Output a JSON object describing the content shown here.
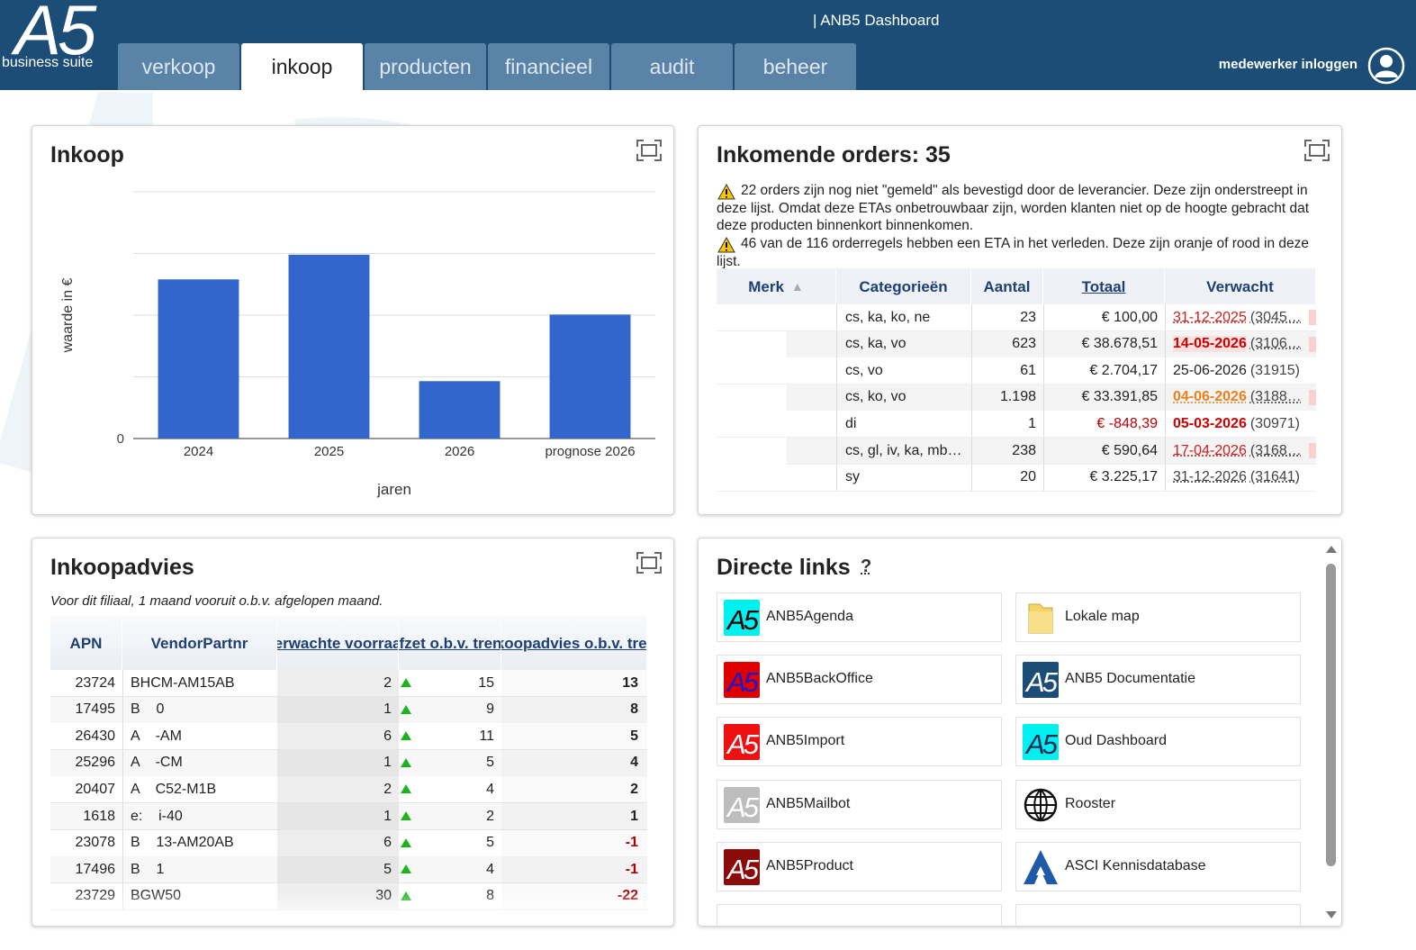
{
  "header": {
    "logo_text": "A5",
    "logo_subtitle": "business suite",
    "title": "| ANB5 Dashboard",
    "tabs": [
      "verkoop",
      "inkoop",
      "producten",
      "financieel",
      "audit",
      "beheer"
    ],
    "active_tab": 1,
    "login": "medewerker inloggen"
  },
  "chart_data": {
    "type": "bar",
    "title": "Inkoop",
    "categories": [
      "2024",
      "2025",
      "2026",
      "prognose 2026"
    ],
    "values": [
      2.58,
      2.98,
      0.93,
      2.01
    ],
    "color": "#3366cc",
    "ylim": [
      0,
      4
    ],
    "yticks": [
      0
    ],
    "grid": true,
    "x_label": "jaren",
    "y_label": "waarde in €"
  },
  "orders": {
    "title": "Inkomende orders: 35",
    "warnings": [
      "22 orders zijn nog niet \"gemeld\" als bevestigd door de leverancier. Deze zijn onderstreept in deze lijst. Omdat deze ETAs onbetrouwbaar zijn, worden klanten niet op de hoogte gebracht dat deze producten binnenkort binnenkomen.",
      "46 van de 116 orderregels hebben een ETA in het verleden. Deze zijn oranje of rood in deze lijst."
    ],
    "columns": [
      "Merk",
      "Categorieën",
      "Aantal",
      "Totaal",
      "Verwacht"
    ],
    "sort_column": 0,
    "rows": [
      {
        "categories": "cs, ka, ko, ne",
        "amount": "23",
        "total": "€ 100,00",
        "date": "31-12-2025",
        "ref": "(3045…",
        "date_style": "red-underline"
      },
      {
        "categories": "cs, ka, vo",
        "amount": "623",
        "total": "€ 38.678,51",
        "date": "14-05-2026",
        "ref": "(3106…",
        "date_style": "red-bold"
      },
      {
        "categories": "cs, vo",
        "amount": "61",
        "total": "€ 2.704,17",
        "date": "25-06-2026",
        "ref": "(31915)",
        "date_style": "plain"
      },
      {
        "categories": "cs, ko, vo",
        "amount": "1.198",
        "total": "€ 33.391,85",
        "date": "04-06-2026",
        "ref": "(3188…",
        "date_style": "orange-underline"
      },
      {
        "categories": "di",
        "amount": "1",
        "total": "€ -848,39",
        "date": "05-03-2026",
        "ref": "(30971)",
        "date_style": "red-strong"
      },
      {
        "categories": "cs, gl, iv, ka, mb…",
        "amount": "238",
        "total": "€ 590,64",
        "date": "17-04-2026",
        "ref": "(3168…",
        "date_style": "red-underline"
      },
      {
        "categories": "sy",
        "amount": "20",
        "total": "€ 3.225,17",
        "date": "31-12-2026",
        "ref": "(31641)",
        "date_style": "gray-underline"
      }
    ]
  },
  "advice": {
    "title": "Inkoopadvies",
    "subtitle": "Voor dit filiaal, 1 maand vooruit o.b.v. afgelopen maand.",
    "columns": [
      "APN",
      "VendorPartnr",
      "Verwachte voorraad",
      "Afzet o.b.v. trend",
      "Inkoopadvies o.b.v. trend"
    ],
    "rows": [
      [
        23724,
        "BHCM-AM15AB",
        2,
        15,
        13
      ],
      [
        17495,
        "B    0",
        1,
        9,
        8
      ],
      [
        26430,
        "A    -AM",
        6,
        11,
        5
      ],
      [
        25296,
        "A    -CM",
        1,
        5,
        4
      ],
      [
        20407,
        "A    C52-M1B",
        2,
        4,
        2
      ],
      [
        1618,
        "e:    i-40",
        1,
        2,
        1
      ],
      [
        23078,
        "B    13-AM20AB",
        6,
        5,
        -1
      ],
      [
        17496,
        "B    1",
        5,
        4,
        -1
      ],
      [
        23729,
        "BGW50",
        30,
        8,
        -22
      ]
    ]
  },
  "links": {
    "title": "Directe links",
    "help": "?",
    "items": [
      {
        "label": "ANB5Agenda",
        "icon": "a5",
        "bg": "#00f0f0",
        "fg": "#000000"
      },
      {
        "label": "Lokale map",
        "icon": "folder"
      },
      {
        "label": "ANB5BackOffice",
        "icon": "a5",
        "bg": "#e00000",
        "fg": "#1a1acc"
      },
      {
        "label": "ANB5 Documentatie",
        "icon": "a5",
        "bg": "#1b4d76",
        "fg": "#ffffff"
      },
      {
        "label": "ANB5Import",
        "icon": "a5",
        "bg": "#ee1111",
        "fg": "#ffffff"
      },
      {
        "label": "Oud Dashboard",
        "icon": "a5",
        "bg": "#00f0f0",
        "fg": "#0a2a55"
      },
      {
        "label": "ANB5Mailbot",
        "icon": "a5",
        "bg": "#bdbdbd",
        "fg": "#ffffff"
      },
      {
        "label": "Rooster",
        "icon": "globe"
      },
      {
        "label": "ANB5Product",
        "icon": "a5",
        "bg": "#8b0a0a",
        "fg": "#ffffff"
      },
      {
        "label": "ASCI Kennisdatabase",
        "icon": "asci"
      }
    ]
  }
}
